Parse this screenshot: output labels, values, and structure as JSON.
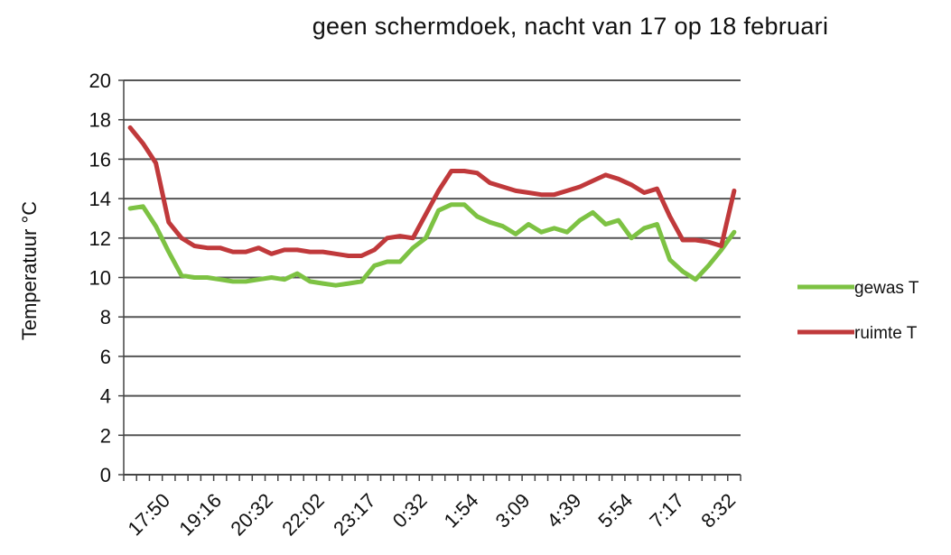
{
  "chart_data": {
    "type": "line",
    "title": "geen schermdoek, nacht van 17 op 18 februari",
    "ylabel": "Temperatuur  °C",
    "xlabel": "",
    "ylim": [
      0,
      20
    ],
    "yticks": [
      0,
      2,
      4,
      6,
      8,
      10,
      12,
      14,
      16,
      18,
      20
    ],
    "grid": true,
    "legend_position": "right",
    "xtick_labels": [
      "17:50",
      "19:16",
      "20:32",
      "22:02",
      "23:17",
      "0:32",
      "1:54",
      "3:09",
      "4:39",
      "5:54",
      "7:17",
      "8:32"
    ],
    "xtick_label_positions": [
      2.5,
      6.5,
      10.5,
      14.5,
      18.5,
      22.5,
      26.5,
      30.5,
      34.5,
      38.5,
      42.5,
      46.5
    ],
    "n_points": 48,
    "series": [
      {
        "name": "gewas T",
        "color": "#7dc243",
        "values": [
          13.5,
          13.6,
          12.6,
          11.3,
          10.1,
          10.0,
          10.0,
          9.9,
          9.8,
          9.8,
          9.9,
          10.0,
          9.9,
          10.2,
          9.8,
          9.7,
          9.6,
          9.7,
          9.8,
          10.6,
          10.8,
          10.8,
          11.5,
          12.0,
          13.4,
          13.7,
          13.7,
          13.1,
          12.8,
          12.6,
          12.2,
          12.7,
          12.3,
          12.5,
          12.3,
          12.9,
          13.3,
          12.7,
          12.9,
          12.0,
          12.5,
          12.7,
          10.9,
          10.3,
          9.9,
          10.6,
          11.4,
          12.3
        ]
      },
      {
        "name": "ruimte T",
        "color": "#c0393b",
        "values": [
          17.6,
          16.8,
          15.8,
          12.8,
          12.0,
          11.6,
          11.5,
          11.5,
          11.3,
          11.3,
          11.5,
          11.2,
          11.4,
          11.4,
          11.3,
          11.3,
          11.2,
          11.1,
          11.1,
          11.4,
          12.0,
          12.1,
          12.0,
          13.2,
          14.4,
          15.4,
          15.4,
          15.3,
          14.8,
          14.6,
          14.4,
          14.3,
          14.2,
          14.2,
          14.4,
          14.6,
          14.9,
          15.2,
          15.0,
          14.7,
          14.3,
          14.5,
          13.1,
          11.9,
          11.9,
          11.8,
          11.6,
          14.4
        ]
      }
    ]
  }
}
